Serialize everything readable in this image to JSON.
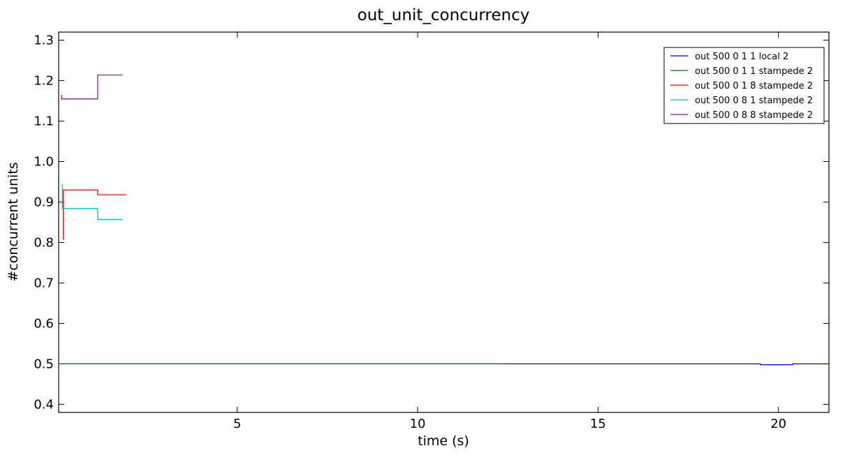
{
  "chart_data": {
    "type": "line",
    "title": "out_unit_concurrency",
    "xlabel": "time (s)",
    "ylabel": "#concurrent units",
    "xlim": [
      0.05,
      21.4
    ],
    "ylim": [
      0.38,
      1.32
    ],
    "xticks": [
      5,
      10,
      15,
      20
    ],
    "yticks": [
      0.4,
      0.5,
      0.6,
      0.7,
      0.8,
      0.9,
      1.0,
      1.1,
      1.2,
      1.3
    ],
    "ytick_labels": [
      "0.4",
      "0.5",
      "0.6",
      "0.7",
      "0.8",
      "0.9",
      "1.0",
      "1.1",
      "1.2",
      "1.3"
    ],
    "grid": false,
    "legend_position": "top-right",
    "series": [
      {
        "name": "out 500 0 1 1 local 2",
        "color": "#0000ff",
        "x": [
          0.05,
          19.5,
          19.5,
          20.4,
          20.4,
          21.4
        ],
        "y": [
          0.5,
          0.5,
          0.498,
          0.498,
          0.5,
          0.5
        ]
      },
      {
        "name": "out 500 0 1 1 stampede 2",
        "color": "#008000",
        "x": [
          0.05,
          12.4
        ],
        "y": [
          0.5,
          0.5
        ]
      },
      {
        "name": "out 500 0 1 8 stampede 2",
        "color": "#ff0000",
        "x": [
          0.18,
          0.18,
          1.13,
          1.13,
          1.92
        ],
        "y": [
          0.807,
          0.93,
          0.93,
          0.918,
          0.918
        ]
      },
      {
        "name": "out 500 0 8 1 stampede 2",
        "color": "#00bfbf",
        "x": [
          0.15,
          0.15,
          1.13,
          1.13,
          1.82
        ],
        "y": [
          0.945,
          0.884,
          0.884,
          0.857,
          0.857
        ]
      },
      {
        "name": "out 500 0 8 8 stampede 2",
        "color": "#bf00bf",
        "x": [
          0.13,
          0.13,
          1.13,
          1.13,
          1.82
        ],
        "y": [
          1.165,
          1.155,
          1.155,
          1.214,
          1.214
        ]
      }
    ]
  }
}
